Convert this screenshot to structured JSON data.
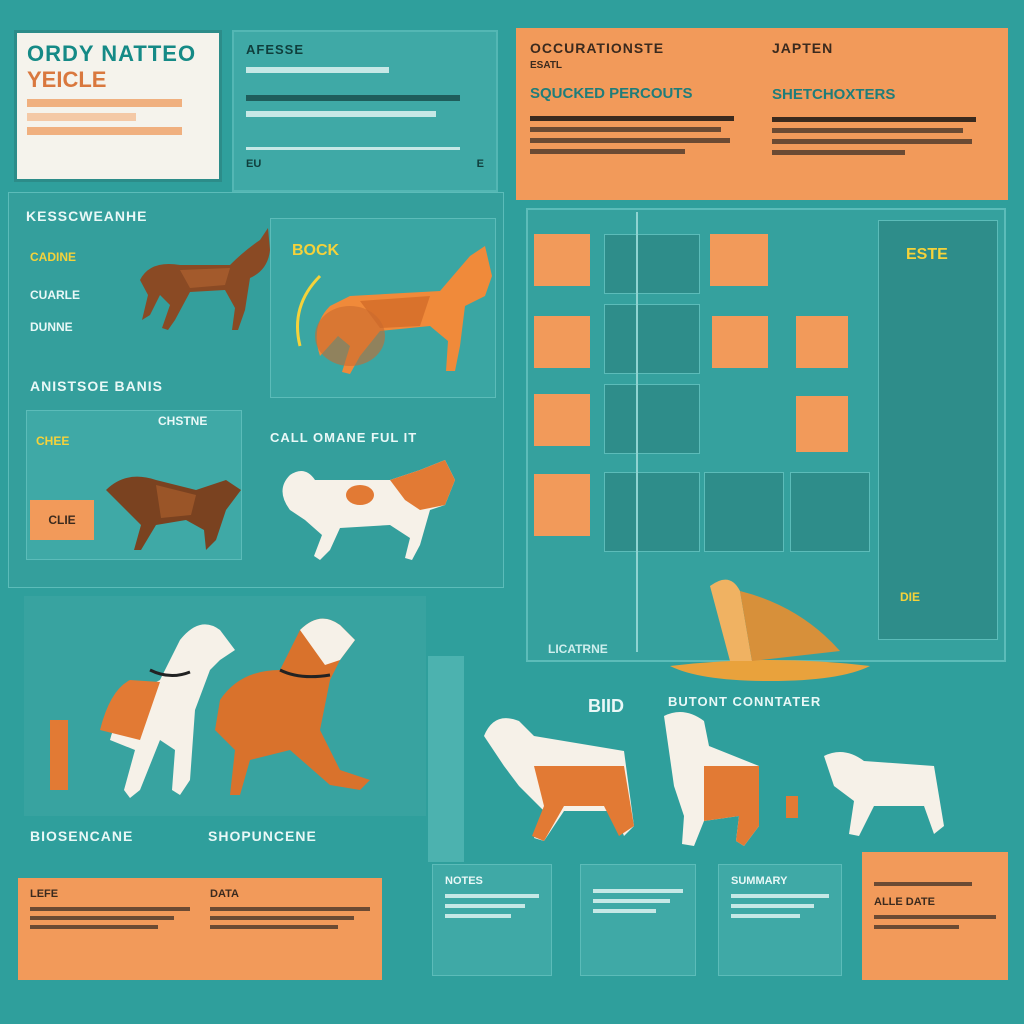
{
  "title_card": {
    "brand": "ORDY NATTEO",
    "subtitle": "YEICLE",
    "lines": [
      "",
      "",
      ""
    ]
  },
  "top_mid": {
    "header": "AFESSE",
    "rows": [
      "",
      "",
      ""
    ],
    "footer_left": "EU",
    "footer_right": "E"
  },
  "orange_top": {
    "left_title": "OCCURATIONSTE",
    "left_label": "ESATL",
    "left_sub": "SQUCKED PERCOUTS",
    "right_title": "JAPTEN",
    "right_sub": "SHETCHOXTERS"
  },
  "left_sections": {
    "section1_title": "KESSCWEANHE",
    "label_yellow": "CADINE",
    "label_white_1": "CUARLE",
    "label_white_2": "DUNNE",
    "section2_title": "ANISTSOE BANIS",
    "tag_yellow": "CHEE",
    "tag_orange": "CLIE",
    "mid_title_1": "CHSTNE",
    "mid_title_2": "CALL OMANE FUL IT",
    "top_label": "BOCK"
  },
  "grid": {
    "footer_label": "LICATRNE",
    "side_label": "ESTE",
    "yellow_label": "DIE",
    "tiles": [
      "",
      "",
      "",
      "",
      "",
      "",
      "",
      ""
    ]
  },
  "dogs_section": {
    "label_left": "BIOSENCANE",
    "label_mid": "SHOPUNCENE",
    "right_header": "BUTONT CONNTATER",
    "right_tag": "BIID"
  },
  "bottom": {
    "card1_title": "LEFE",
    "card2_title": "DATA",
    "card3_title": "NOTES",
    "card4_title": "SUMMARY",
    "card5_title": "ALLE DATE"
  },
  "colors": {
    "background": "#2f9f9c",
    "orange": "#f29a5a",
    "yellow": "#f5d23a"
  }
}
